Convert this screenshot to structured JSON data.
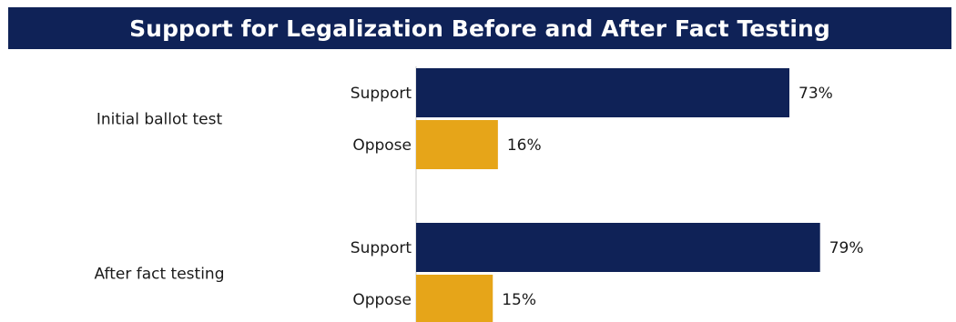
{
  "chart_data": {
    "type": "bar",
    "orientation": "horizontal",
    "title": "Support for Legalization Before and After Fact Testing",
    "groups": [
      {
        "label": "Initial ballot test",
        "bars": [
          {
            "category": "Support",
            "value": 73,
            "value_label": "73%",
            "color": "#0f2257"
          },
          {
            "category": "Oppose",
            "value": 16,
            "value_label": "16%",
            "color": "#e6a519"
          }
        ]
      },
      {
        "label": "After fact testing",
        "bars": [
          {
            "category": "Support",
            "value": 79,
            "value_label": "79%",
            "color": "#0f2257"
          },
          {
            "category": "Oppose",
            "value": 15,
            "value_label": "15%",
            "color": "#e6a519"
          }
        ]
      }
    ],
    "xlim": [
      0,
      100
    ],
    "grid": false,
    "legend": "none"
  }
}
